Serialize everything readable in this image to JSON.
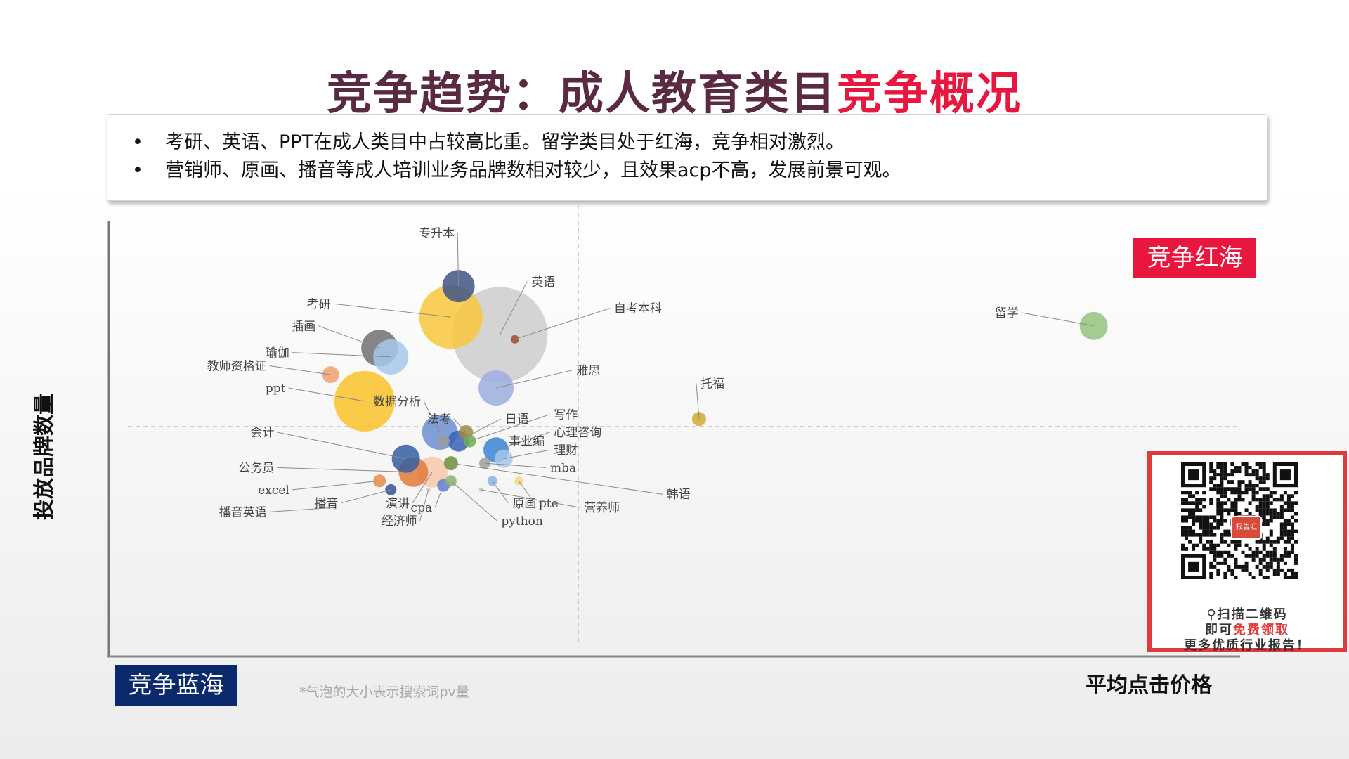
{
  "title": {
    "part1": "竞争趋势：成人教育类目",
    "part2": "竞争概况"
  },
  "bullets": [
    {
      "marker": "•",
      "text": "考研、英语、PPT在成人类目中占较高比重。留学类目处于红海，竞争相对激烈。"
    },
    {
      "marker": "•",
      "text": "营销师、原画、播音等成人培训业务品牌数相对较少，且效果acp不高，发展前景可观。"
    }
  ],
  "tags": {
    "red_ocean": "竞争红海",
    "blue_ocean": "竞争蓝海"
  },
  "axes": {
    "ylabel": "投放品牌数量",
    "xlabel": "平均点击价格"
  },
  "footnote": "*气泡的大小表示搜索词pv量",
  "qr": {
    "line1": "扫描二维码",
    "line2a": "即可",
    "line2b": "免费领取",
    "line3": "更多优质行业报告！",
    "center": "报告汇",
    "icon": "magnifier-icon"
  },
  "colors": {
    "title": "#5a2a42",
    "accent": "#e8173f",
    "blue_tag": "#0b2a6c"
  },
  "chart_data": {
    "type": "bubble",
    "xlabel": "平均点击价格",
    "ylabel": "投放品牌数量",
    "size_meaning": "搜索词pv量",
    "quadrant_lines": true,
    "points": [
      {
        "label": "专升本",
        "x": 0.93,
        "y": 8.3,
        "r": 23,
        "color": "#3e5587",
        "lx": 0.92,
        "ly": 9.5
      },
      {
        "label": "考研",
        "x": 0.91,
        "y": 7.6,
        "r": 45,
        "color": "#f9c73c",
        "lx": 0.59,
        "ly": 7.9
      },
      {
        "label": "英语",
        "x": 1.04,
        "y": 7.2,
        "r": 68,
        "color": "#cccccc",
        "lx": 1.12,
        "ly": 8.4
      },
      {
        "label": "自考本科",
        "x": 1.08,
        "y": 7.1,
        "r": 6,
        "color": "#9c4a2a",
        "lx": 1.34,
        "ly": 7.8
      },
      {
        "label": "插画",
        "x": 0.72,
        "y": 6.9,
        "r": 26,
        "color": "#707070",
        "lx": 0.55,
        "ly": 7.4
      },
      {
        "label": "瑜伽",
        "x": 0.75,
        "y": 6.7,
        "r": 25,
        "color": "#a6c8ec",
        "lx": 0.48,
        "ly": 6.8
      },
      {
        "label": "教师资格证",
        "x": 0.59,
        "y": 6.3,
        "r": 12,
        "color": "#f0a070",
        "lx": 0.42,
        "ly": 6.5
      },
      {
        "label": "雅思",
        "x": 1.03,
        "y": 6.0,
        "r": 25,
        "color": "#9caee0",
        "lx": 1.24,
        "ly": 6.4
      },
      {
        "label": "托福",
        "x": 1.57,
        "y": 5.3,
        "r": 10,
        "color": "#d4ac2e",
        "lx": 1.57,
        "ly": 6.1
      },
      {
        "label": "ppt",
        "x": 0.68,
        "y": 5.7,
        "r": 43,
        "color": "#f9c32a",
        "lx": 0.47,
        "ly": 6.0
      },
      {
        "label": "数据分析",
        "x": 0.88,
        "y": 5.0,
        "r": 25,
        "color": "#6f8fd4",
        "lx": 0.83,
        "ly": 5.7
      },
      {
        "label": "法考",
        "x": 0.95,
        "y": 5.0,
        "r": 10,
        "color": "#a08a3c",
        "lx": 0.91,
        "ly": 5.3
      },
      {
        "label": "日语",
        "x": 0.93,
        "y": 4.8,
        "r": 15,
        "color": "#3b5fb8",
        "lx": 1.05,
        "ly": 5.3
      },
      {
        "label": "写作",
        "x": 0.96,
        "y": 4.8,
        "r": 9,
        "color": "#6bb050",
        "lx": 1.18,
        "ly": 5.4
      },
      {
        "label": "心理咨询",
        "x": 1.03,
        "y": 4.6,
        "r": 18,
        "color": "#3a84d4",
        "lx": 1.18,
        "ly": 5.0
      },
      {
        "label": "事业编",
        "x": 0.89,
        "y": 4.8,
        "r": 9,
        "color": "#9a9a9a",
        "lx": 1.06,
        "ly": 4.8
      },
      {
        "label": "会计",
        "x": 0.79,
        "y": 4.4,
        "r": 20,
        "color": "#335fa0",
        "lx": 0.44,
        "ly": 5.0
      },
      {
        "label": "理财",
        "x": 1.05,
        "y": 4.4,
        "r": 13,
        "color": "#a6c8ec",
        "lx": 1.18,
        "ly": 4.6
      },
      {
        "label": "mba",
        "x": 1.0,
        "y": 4.3,
        "r": 8,
        "color": "#a0a0a0",
        "lx": 1.17,
        "ly": 4.2
      },
      {
        "label": "公务员",
        "x": 0.81,
        "y": 4.1,
        "r": 21,
        "color": "#e07a3a",
        "lx": 0.44,
        "ly": 4.2
      },
      {
        "label": "韩语",
        "x": 0.91,
        "y": 4.3,
        "r": 10,
        "color": "#6a8f3a",
        "lx": 1.48,
        "ly": 3.6
      },
      {
        "label": "excel",
        "x": 0.72,
        "y": 3.9,
        "r": 9,
        "color": "#e88a4a",
        "lx": 0.48,
        "ly": 3.7
      },
      {
        "label": "播音",
        "x": 0.75,
        "y": 3.7,
        "r": 8,
        "color": "#3b4f9a",
        "lx": 0.61,
        "ly": 3.4
      },
      {
        "label": "演讲",
        "x": 0.86,
        "y": 4.1,
        "r": 22,
        "color": "#f7c8a8",
        "lx": 0.8,
        "ly": 3.4
      },
      {
        "label": "cpa",
        "x": 0.89,
        "y": 3.8,
        "r": 9,
        "color": "#5d7fd0",
        "lx": 0.86,
        "ly": 3.3
      },
      {
        "label": "原画",
        "x": 1.02,
        "y": 3.9,
        "r": 7,
        "color": "#8ab4e6",
        "lx": 1.07,
        "ly": 3.4
      },
      {
        "label": "pte",
        "x": 1.09,
        "y": 3.9,
        "r": 6,
        "color": "#f5d878",
        "lx": 1.14,
        "ly": 3.4
      },
      {
        "label": "营养师",
        "x": 0.99,
        "y": 3.7,
        "r": 3,
        "color": "#b8d898",
        "lx": 1.26,
        "ly": 3.3
      },
      {
        "label": "播音英语",
        "x": 0.6,
        "y": 3.3,
        "r": 3,
        "color": "#dcdcdc",
        "lx": 0.42,
        "ly": 3.2
      },
      {
        "label": "经济师",
        "x": 0.85,
        "y": 3.7,
        "r": 3,
        "color": "#cccccc",
        "lx": 0.82,
        "ly": 3.0
      },
      {
        "label": "python",
        "x": 0.91,
        "y": 3.9,
        "r": 8,
        "color": "#8fb070",
        "lx": 1.04,
        "ly": 3.0
      },
      {
        "label": "留学",
        "x": 2.62,
        "y": 7.4,
        "r": 20,
        "color": "#93c47d",
        "lx": 2.42,
        "ly": 7.7
      }
    ]
  }
}
